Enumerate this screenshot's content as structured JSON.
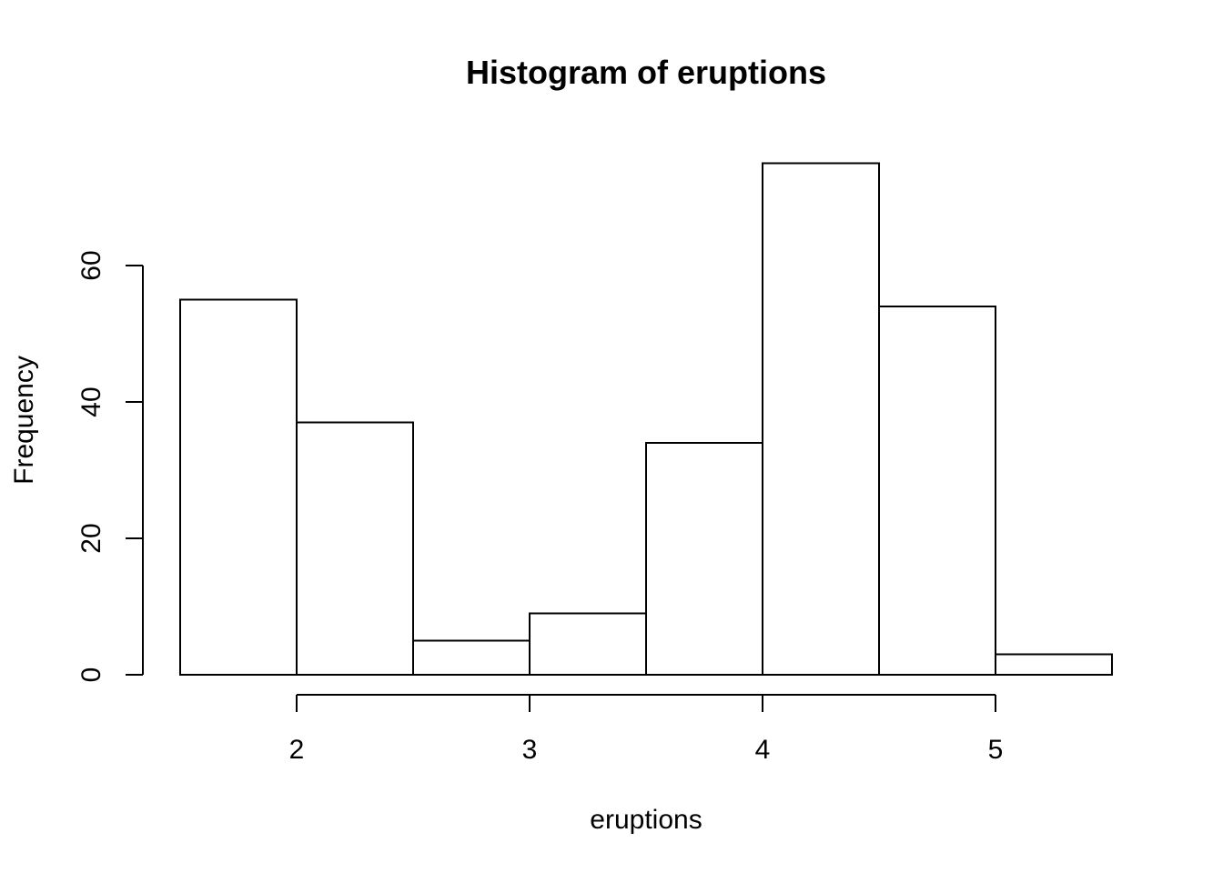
{
  "chart_data": {
    "type": "bar",
    "title": "Histogram of eruptions",
    "xlabel": "eruptions",
    "ylabel": "Frequency",
    "bins": [
      {
        "from": 1.5,
        "to": 2.0,
        "count": 55
      },
      {
        "from": 2.0,
        "to": 2.5,
        "count": 37
      },
      {
        "from": 2.5,
        "to": 3.0,
        "count": 5
      },
      {
        "from": 3.0,
        "to": 3.5,
        "count": 9
      },
      {
        "from": 3.5,
        "to": 4.0,
        "count": 34
      },
      {
        "from": 4.0,
        "to": 4.5,
        "count": 75
      },
      {
        "from": 4.5,
        "to": 5.0,
        "count": 54
      },
      {
        "from": 5.0,
        "to": 5.5,
        "count": 3
      }
    ],
    "x_ticks": [
      2,
      3,
      4,
      5
    ],
    "y_ticks": [
      0,
      20,
      40,
      60
    ],
    "xlim": [
      1.5,
      5.5
    ],
    "ylim": [
      0,
      75
    ],
    "grid": false
  }
}
